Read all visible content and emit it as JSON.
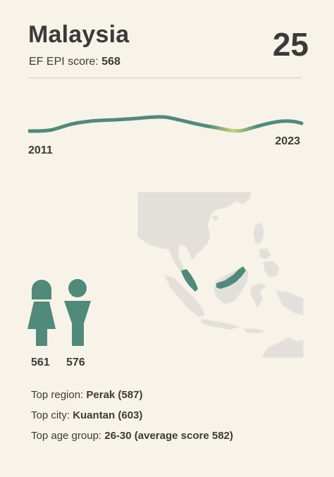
{
  "country": "Malaysia",
  "rank": "25",
  "score_label": "EF EPI score: ",
  "score_value": "568",
  "trend": {
    "start_year": "2011",
    "end_year": "2023",
    "line_color": "#4f8a7b",
    "highlight_color": "#c6d37a"
  },
  "map": {
    "land_color": "#e3e0dc",
    "highlight_color": "#4f8a7b"
  },
  "gender": {
    "female_score": "561",
    "male_score": "576",
    "icon_color": "#4f8a7b"
  },
  "facts": [
    {
      "label": "Top region: ",
      "value": "Perak (587)"
    },
    {
      "label": "Top city: ",
      "value": "Kuantan (603)"
    },
    {
      "label": "Top age group: ",
      "value": "26-30 (average score 582)"
    }
  ]
}
